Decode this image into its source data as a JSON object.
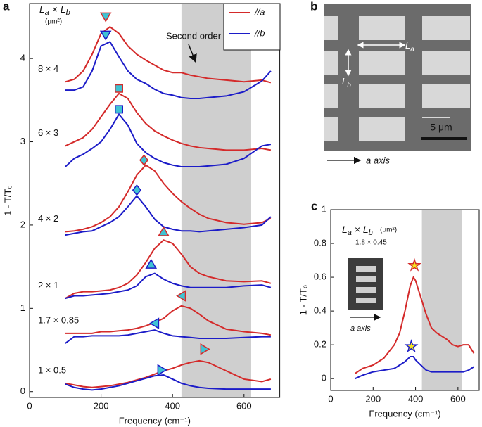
{
  "chart_data": [
    {
      "type": "line",
      "panel_label": "a",
      "size_label": [
        "L",
        "a",
        " × L",
        "b"
      ],
      "size_unit": "(μm²)",
      "xlabel": "Frequency (cm⁻¹)",
      "ylabel": "1 - T/T₀",
      "xlim": [
        0,
        700
      ],
      "ylim": [
        -0.07,
        4.66
      ],
      "xticks": [
        0,
        200,
        400,
        600
      ],
      "yticks": [
        0,
        1,
        2,
        3,
        4
      ],
      "shaded_range": [
        425,
        620
      ],
      "marker_fill": "#3fc3d3",
      "legend": [
        {
          "name": "//a",
          "color": "#d42a2a"
        },
        {
          "name": "//b",
          "color": "#1c1cc8"
        }
      ],
      "annotation": "Second order",
      "x": [
        100,
        125,
        150,
        175,
        200,
        225,
        250,
        275,
        300,
        325,
        350,
        375,
        400,
        425,
        450,
        475,
        500,
        550,
        600,
        650,
        675
      ],
      "curves": [
        {
          "label": "8 × 4",
          "a_values": [
            3.72,
            3.75,
            3.85,
            4.05,
            4.3,
            4.38,
            4.3,
            4.15,
            4.05,
            3.98,
            3.92,
            3.86,
            3.83,
            3.83,
            3.8,
            3.78,
            3.76,
            3.74,
            3.72,
            3.74,
            3.71
          ],
          "b_values": [
            3.62,
            3.62,
            3.66,
            3.85,
            4.15,
            4.2,
            4.02,
            3.85,
            3.75,
            3.7,
            3.63,
            3.58,
            3.56,
            3.53,
            3.52,
            3.52,
            3.53,
            3.55,
            3.6,
            3.73,
            3.85
          ],
          "markers": [
            {
              "x": 213,
              "y": 4.5,
              "shape": "down"
            },
            {
              "x": 213,
              "y": 4.28,
              "shape": "down"
            }
          ]
        },
        {
          "label": "6 × 3",
          "a_values": [
            2.95,
            3.0,
            3.05,
            3.15,
            3.3,
            3.45,
            3.58,
            3.52,
            3.35,
            3.22,
            3.13,
            3.07,
            3.02,
            2.98,
            2.95,
            2.93,
            2.92,
            2.9,
            2.9,
            2.92,
            2.9
          ],
          "b_values": [
            2.7,
            2.8,
            2.85,
            2.92,
            3.0,
            3.15,
            3.33,
            3.2,
            2.98,
            2.87,
            2.8,
            2.75,
            2.72,
            2.7,
            2.7,
            2.7,
            2.71,
            2.73,
            2.8,
            2.95,
            2.97
          ],
          "markers": [
            {
              "x": 250,
              "y": 3.64,
              "shape": "square"
            },
            {
              "x": 250,
              "y": 3.39,
              "shape": "square"
            }
          ]
        },
        {
          "label": "4 × 2",
          "a_values": [
            1.92,
            1.93,
            1.95,
            1.98,
            2.03,
            2.1,
            2.22,
            2.4,
            2.6,
            2.72,
            2.65,
            2.5,
            2.38,
            2.28,
            2.2,
            2.13,
            2.08,
            2.03,
            2.01,
            2.03,
            2.08
          ],
          "b_values": [
            1.88,
            1.9,
            1.92,
            1.93,
            1.98,
            2.03,
            2.1,
            2.22,
            2.35,
            2.22,
            2.07,
            1.98,
            1.95,
            1.93,
            1.93,
            1.92,
            1.93,
            1.95,
            1.97,
            2.0,
            2.1
          ],
          "markers": [
            {
              "x": 320,
              "y": 2.78,
              "shape": "diamond"
            },
            {
              "x": 300,
              "y": 2.42,
              "shape": "diamond"
            }
          ]
        },
        {
          "label": "2 × 1",
          "a_values": [
            1.12,
            1.18,
            1.2,
            1.2,
            1.21,
            1.22,
            1.25,
            1.3,
            1.4,
            1.55,
            1.72,
            1.82,
            1.78,
            1.65,
            1.5,
            1.42,
            1.38,
            1.33,
            1.32,
            1.33,
            1.3
          ],
          "b_values": [
            1.12,
            1.15,
            1.15,
            1.16,
            1.17,
            1.18,
            1.2,
            1.22,
            1.27,
            1.38,
            1.42,
            1.35,
            1.3,
            1.27,
            1.25,
            1.25,
            1.25,
            1.25,
            1.27,
            1.28,
            1.25
          ],
          "markers": [
            {
              "x": 375,
              "y": 1.92,
              "shape": "up"
            },
            {
              "x": 340,
              "y": 1.53,
              "shape": "up"
            }
          ]
        },
        {
          "label": "1.7 × 0.85",
          "a_values": [
            0.7,
            0.7,
            0.7,
            0.7,
            0.72,
            0.72,
            0.73,
            0.74,
            0.76,
            0.79,
            0.83,
            0.88,
            0.97,
            1.03,
            1.0,
            0.93,
            0.85,
            0.75,
            0.72,
            0.7,
            0.68
          ],
          "b_values": [
            0.58,
            0.66,
            0.66,
            0.67,
            0.67,
            0.67,
            0.67,
            0.68,
            0.7,
            0.72,
            0.74,
            0.7,
            0.67,
            0.66,
            0.65,
            0.64,
            0.64,
            0.64,
            0.65,
            0.66,
            0.66
          ],
          "markers": [
            {
              "x": 425,
              "y": 1.15,
              "shape": "left"
            },
            {
              "x": 350,
              "y": 0.82,
              "shape": "left"
            }
          ]
        },
        {
          "label": "1 × 0.5",
          "a_values": [
            0.1,
            0.08,
            0.06,
            0.05,
            0.06,
            0.07,
            0.09,
            0.11,
            0.14,
            0.17,
            0.21,
            0.25,
            0.28,
            0.32,
            0.35,
            0.37,
            0.35,
            0.25,
            0.15,
            0.12,
            0.15
          ],
          "b_values": [
            0.09,
            0.05,
            0.03,
            0.02,
            0.03,
            0.05,
            0.07,
            0.1,
            0.13,
            0.16,
            0.19,
            0.2,
            0.15,
            0.1,
            0.07,
            0.05,
            0.04,
            0.03,
            0.03,
            0.03,
            0.03
          ],
          "markers": [
            {
              "x": 490,
              "y": 0.51,
              "shape": "right"
            },
            {
              "x": 370,
              "y": 0.26,
              "shape": "right"
            }
          ]
        }
      ]
    },
    {
      "type": "line",
      "panel_label": "c",
      "size_label": [
        "L",
        "a",
        " × L",
        "b"
      ],
      "size_unit": "(μm²)",
      "size_value": "1.8 × 0.45",
      "inset_label": "a axis",
      "xlabel": "Frequency (cm⁻¹)",
      "ylabel": "1 - T/T₀",
      "xlim": [
        0,
        700
      ],
      "ylim": [
        -0.07,
        1.0
      ],
      "xticks": [
        0,
        200,
        400,
        600
      ],
      "yticks": [
        0,
        0.2,
        0.4,
        0.6,
        0.8,
        1
      ],
      "shaded_range": [
        430,
        620
      ],
      "marker_fill": "#f5e61e",
      "x": [
        115,
        150,
        200,
        250,
        300,
        325,
        350,
        375,
        390,
        400,
        425,
        450,
        475,
        500,
        525,
        550,
        575,
        600,
        625,
        650,
        675
      ],
      "curves": [
        {
          "a_values": [
            0.03,
            0.06,
            0.08,
            0.12,
            0.2,
            0.27,
            0.4,
            0.55,
            0.6,
            0.58,
            0.48,
            0.38,
            0.3,
            0.27,
            0.25,
            0.23,
            0.2,
            0.19,
            0.2,
            0.2,
            0.15
          ],
          "b_values": [
            0.0,
            0.02,
            0.04,
            0.05,
            0.06,
            0.08,
            0.1,
            0.13,
            0.13,
            0.11,
            0.08,
            0.05,
            0.04,
            0.04,
            0.04,
            0.04,
            0.04,
            0.04,
            0.04,
            0.05,
            0.07
          ],
          "markers": [
            {
              "x": 395,
              "y": 0.67,
              "shape": "star"
            },
            {
              "x": 380,
              "y": 0.19,
              "shape": "star"
            }
          ]
        }
      ]
    }
  ],
  "image_panel": {
    "panel_label": "b",
    "la_label": [
      "L",
      "a"
    ],
    "lb_label": [
      "L",
      "b"
    ],
    "scale_bar": "5 μm",
    "axis_label": "a axis"
  }
}
